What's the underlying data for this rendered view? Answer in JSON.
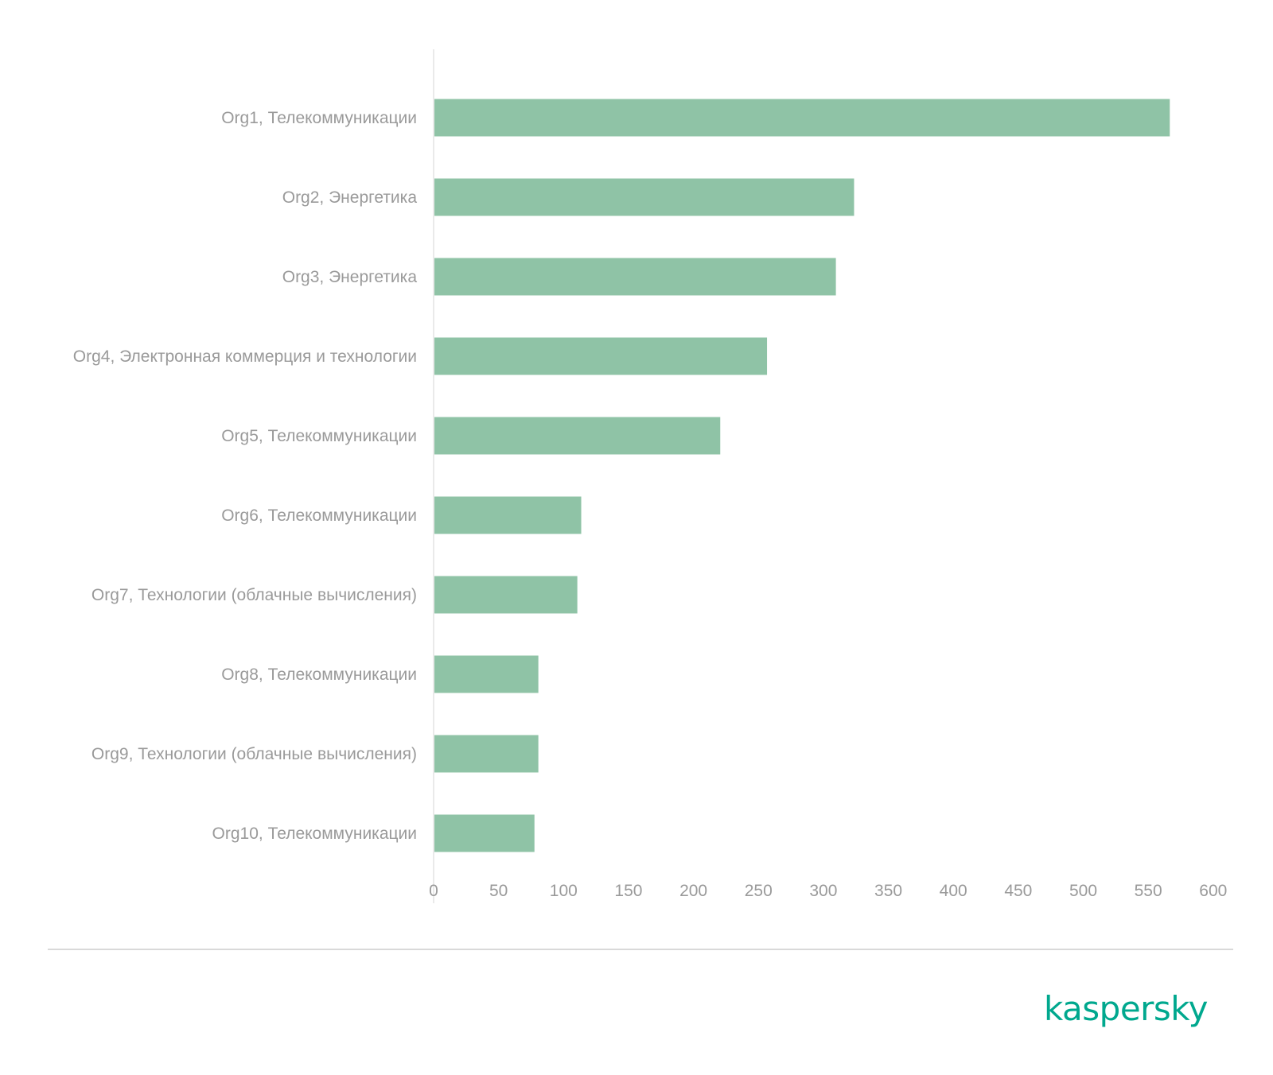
{
  "colors": {
    "bar": "#8fc3a6",
    "axis_line": "#e3e3e3",
    "label_text": "#9a9a9a",
    "brand": "#00a88e",
    "footer_rule": "#d9d9d9"
  },
  "chart_data": {
    "type": "bar",
    "orientation": "horizontal",
    "categories": [
      "Org1, Телекоммуникации",
      "Org2, Энергетика",
      "Org3, Энергетика",
      "Org4, Электронная коммерция и технологии",
      "Org5, Телекоммуникации",
      "Org6, Телекоммуникации",
      "Org7, Технологии (облачные вычисления)",
      "Org8, Телекоммуникации",
      "Org9, Технологии (облачные вычисления)",
      "Org10, Телекоммуникации"
    ],
    "values": [
      566,
      323,
      309,
      256,
      220,
      113,
      110,
      80,
      80,
      77
    ],
    "title": "",
    "xlabel": "",
    "ylabel": "",
    "xlim": [
      0,
      600
    ],
    "x_ticks": [
      "0",
      "50",
      "100",
      "150",
      "200",
      "250",
      "300",
      "350",
      "400",
      "450",
      "500",
      "550",
      "600"
    ],
    "grid": false,
    "legend": "none"
  },
  "footer": {
    "brand_name": "kaspersky"
  }
}
